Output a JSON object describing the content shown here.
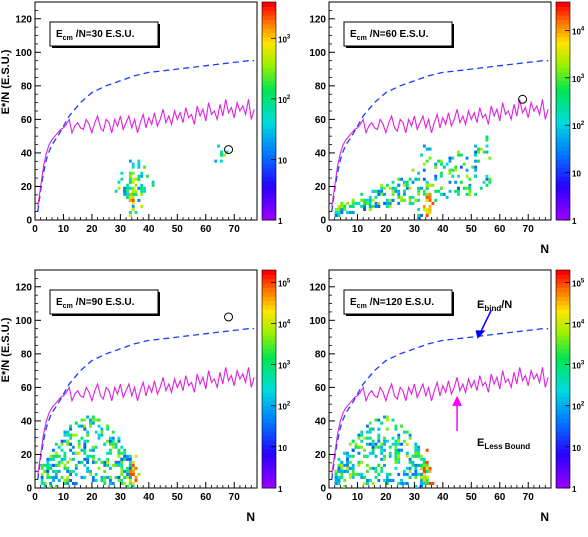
{
  "chart_data": [
    {
      "type": "heatmap",
      "label": "E_cm /N=30 E.S.U.",
      "label_main": "E",
      "label_sub": "cm",
      "label_rest": "/N=30 E.S.U.",
      "ylabel": "E*/N (E.S.U.)",
      "xlabel": "",
      "xlim": [
        0,
        78
      ],
      "ylim": [
        0,
        130
      ],
      "xticks": [
        "0",
        "10",
        "20",
        "30",
        "40",
        "50",
        "60",
        "70"
      ],
      "yticks": [
        "0",
        "20",
        "40",
        "60",
        "80",
        "100",
        "120"
      ],
      "colorbar": {
        "ticks": [
          "1",
          "10",
          "10^2",
          "10^3"
        ],
        "max_exp": 3.6
      },
      "circle": [
        68,
        42
      ],
      "series": [
        {
          "name": "",
          "style": "dashed-blue",
          "x": [
            1,
            2,
            3,
            4,
            5,
            6,
            8,
            10,
            12,
            14,
            16,
            18,
            20,
            25,
            30,
            35,
            40,
            45,
            50,
            55,
            60,
            65,
            70,
            75,
            77
          ],
          "y": [
            5,
            18,
            28,
            36,
            41,
            45,
            50,
            56,
            62,
            66,
            70,
            73,
            76,
            80,
            83,
            86,
            88,
            89,
            90,
            91,
            92,
            93,
            94,
            95,
            95
          ]
        },
        {
          "name": "",
          "style": "solid-magenta",
          "x": [
            1,
            2,
            3,
            4,
            5,
            6,
            7,
            8,
            9,
            10,
            11,
            12,
            13,
            14,
            15,
            16,
            17,
            18,
            19,
            20,
            21,
            22,
            23,
            24,
            25,
            26,
            27,
            28,
            29,
            30,
            31,
            32,
            33,
            34,
            35,
            36,
            37,
            38,
            39,
            40,
            41,
            42,
            43,
            44,
            45,
            46,
            47,
            48,
            49,
            50,
            51,
            52,
            53,
            54,
            55,
            56,
            57,
            58,
            59,
            60,
            61,
            62,
            63,
            64,
            65,
            66,
            67,
            68,
            69,
            70,
            71,
            72,
            73,
            74,
            75,
            76,
            77
          ],
          "y": [
            8,
            20,
            32,
            40,
            45,
            48,
            50,
            52,
            54,
            55,
            57,
            60,
            52,
            56,
            58,
            55,
            54,
            60,
            57,
            52,
            58,
            62,
            55,
            53,
            60,
            58,
            52,
            60,
            56,
            62,
            54,
            58,
            62,
            55,
            60,
            52,
            58,
            63,
            55,
            61,
            57,
            64,
            56,
            60,
            66,
            58,
            62,
            57,
            65,
            60,
            64,
            58,
            67,
            61,
            63,
            57,
            68,
            62,
            66,
            59,
            70,
            63,
            65,
            60,
            69,
            62,
            72,
            64,
            67,
            61,
            70,
            65,
            68,
            63,
            72,
            60,
            66
          ]
        }
      ],
      "clusters": [
        {
          "cx": 34,
          "cy": 20,
          "sx": 2.8,
          "sy": 7,
          "n": 70,
          "level": 0.55
        },
        {
          "cx": 34,
          "cy": 8,
          "sx": 0.7,
          "sy": 6,
          "n": 18,
          "level": 0.85
        },
        {
          "cx": 65,
          "cy": 38,
          "sx": 1.2,
          "sy": 2,
          "n": 10,
          "level": 0.6
        }
      ]
    },
    {
      "type": "heatmap",
      "label": "E_cm /N=60 E.S.U.",
      "label_main": "E",
      "label_sub": "cm",
      "label_rest": "/N=60 E.S.U.",
      "ylabel": "",
      "xlabel": "N",
      "xlim": [
        0,
        78
      ],
      "ylim": [
        0,
        130
      ],
      "xticks": [
        "0",
        "10",
        "20",
        "30",
        "40",
        "50",
        "60",
        "70"
      ],
      "yticks": [
        "0",
        "20",
        "40",
        "60",
        "80",
        "100",
        "120"
      ],
      "colorbar": {
        "ticks": [
          "1",
          "10",
          "10^2",
          "10^3",
          "10^4"
        ],
        "max_exp": 4.6
      },
      "circle": [
        68,
        72
      ],
      "series": [
        {
          "name": "",
          "style": "dashed-blue",
          "x": [
            1,
            2,
            3,
            4,
            5,
            6,
            8,
            10,
            12,
            14,
            16,
            18,
            20,
            25,
            30,
            35,
            40,
            45,
            50,
            55,
            60,
            65,
            70,
            75,
            77
          ],
          "y": [
            5,
            18,
            28,
            36,
            41,
            45,
            50,
            56,
            62,
            66,
            70,
            73,
            76,
            80,
            83,
            86,
            88,
            89,
            90,
            91,
            92,
            93,
            94,
            95,
            95
          ]
        },
        {
          "name": "",
          "style": "solid-magenta",
          "x": [
            1,
            2,
            3,
            4,
            5,
            6,
            7,
            8,
            9,
            10,
            11,
            12,
            13,
            14,
            15,
            16,
            17,
            18,
            19,
            20,
            21,
            22,
            23,
            24,
            25,
            26,
            27,
            28,
            29,
            30,
            31,
            32,
            33,
            34,
            35,
            36,
            37,
            38,
            39,
            40,
            41,
            42,
            43,
            44,
            45,
            46,
            47,
            48,
            49,
            50,
            51,
            52,
            53,
            54,
            55,
            56,
            57,
            58,
            59,
            60,
            61,
            62,
            63,
            64,
            65,
            66,
            67,
            68,
            69,
            70,
            71,
            72,
            73,
            74,
            75,
            76,
            77
          ],
          "y": [
            8,
            20,
            32,
            40,
            45,
            48,
            50,
            52,
            54,
            55,
            57,
            60,
            52,
            56,
            58,
            55,
            54,
            60,
            57,
            52,
            58,
            62,
            55,
            53,
            60,
            58,
            52,
            60,
            56,
            62,
            54,
            58,
            62,
            55,
            60,
            52,
            58,
            63,
            55,
            61,
            57,
            64,
            56,
            60,
            66,
            58,
            62,
            57,
            65,
            60,
            64,
            58,
            67,
            61,
            63,
            57,
            68,
            62,
            66,
            59,
            70,
            63,
            65,
            60,
            69,
            62,
            72,
            64,
            67,
            61,
            70,
            65,
            68,
            63,
            72,
            60,
            66
          ]
        }
      ],
      "clusters": [
        {
          "cx": 33,
          "cy": 25,
          "sx": 12,
          "sy": 9,
          "n": 260,
          "level": 0.5,
          "band": true
        },
        {
          "cx": 34,
          "cy": 10,
          "sx": 0.8,
          "sy": 8,
          "n": 30,
          "level": 0.8
        }
      ]
    },
    {
      "type": "heatmap",
      "label": "E_cm /N=90 E.S.U.",
      "label_main": "E",
      "label_sub": "cm",
      "label_rest": "/N=90 E.S.U.",
      "ylabel": "E*/N (E.S.U.)",
      "xlabel": "N",
      "xlim": [
        0,
        78
      ],
      "ylim": [
        0,
        130
      ],
      "xticks": [
        "0",
        "10",
        "20",
        "30",
        "40",
        "50",
        "60",
        "70"
      ],
      "yticks": [
        "0",
        "20",
        "40",
        "60",
        "80",
        "100",
        "120"
      ],
      "colorbar": {
        "ticks": [
          "1",
          "10",
          "10^2",
          "10^3",
          "10^4",
          "10^5"
        ],
        "max_exp": 5.3
      },
      "circle": [
        68,
        102
      ],
      "series": [
        {
          "name": "",
          "style": "dashed-blue",
          "x": [
            1,
            2,
            3,
            4,
            5,
            6,
            8,
            10,
            12,
            14,
            16,
            18,
            20,
            25,
            30,
            35,
            40,
            45,
            50,
            55,
            60,
            65,
            70,
            75,
            77
          ],
          "y": [
            5,
            18,
            28,
            36,
            41,
            45,
            50,
            56,
            62,
            66,
            70,
            73,
            76,
            80,
            83,
            86,
            88,
            89,
            90,
            91,
            92,
            93,
            94,
            95,
            95
          ]
        },
        {
          "name": "",
          "style": "solid-magenta",
          "x": [
            1,
            2,
            3,
            4,
            5,
            6,
            7,
            8,
            9,
            10,
            11,
            12,
            13,
            14,
            15,
            16,
            17,
            18,
            19,
            20,
            21,
            22,
            23,
            24,
            25,
            26,
            27,
            28,
            29,
            30,
            31,
            32,
            33,
            34,
            35,
            36,
            37,
            38,
            39,
            40,
            41,
            42,
            43,
            44,
            45,
            46,
            47,
            48,
            49,
            50,
            51,
            52,
            53,
            54,
            55,
            56,
            57,
            58,
            59,
            60,
            61,
            62,
            63,
            64,
            65,
            66,
            67,
            68,
            69,
            70,
            71,
            72,
            73,
            74,
            75,
            76,
            77
          ],
          "y": [
            8,
            20,
            32,
            40,
            45,
            48,
            50,
            52,
            54,
            55,
            57,
            60,
            52,
            56,
            58,
            55,
            54,
            60,
            57,
            52,
            58,
            62,
            55,
            53,
            60,
            58,
            52,
            60,
            56,
            62,
            54,
            58,
            62,
            55,
            60,
            52,
            58,
            63,
            55,
            61,
            57,
            64,
            56,
            60,
            66,
            58,
            62,
            57,
            65,
            60,
            64,
            58,
            67,
            61,
            63,
            57,
            68,
            62,
            66,
            59,
            70,
            63,
            65,
            60,
            69,
            62,
            72,
            64,
            67,
            61,
            70,
            65,
            68,
            63,
            72,
            60,
            66
          ]
        }
      ],
      "clusters": [
        {
          "cx": 18,
          "cy": 25,
          "sx": 9,
          "sy": 10,
          "n": 320,
          "level": 0.5,
          "dome": true
        },
        {
          "cx": 34,
          "cy": 8,
          "sx": 0.7,
          "sy": 6,
          "n": 20,
          "level": 0.85
        }
      ]
    },
    {
      "type": "heatmap",
      "label": "E_cm /N=120 E.S.U.",
      "label_main": "E",
      "label_sub": "cm",
      "label_rest": "/N=120 E.S.U.",
      "ylabel": "",
      "xlabel": "N",
      "xlim": [
        0,
        78
      ],
      "ylim": [
        0,
        130
      ],
      "xticks": [
        "0",
        "10",
        "20",
        "30",
        "40",
        "50",
        "60",
        "70"
      ],
      "yticks": [
        "0",
        "20",
        "40",
        "60",
        "80",
        "100",
        "120"
      ],
      "colorbar": {
        "ticks": [
          "1",
          "10",
          "10^2",
          "10^3",
          "10^4",
          "10^5"
        ],
        "max_exp": 5.3
      },
      "circle": null,
      "annotations": [
        {
          "text_main": "E",
          "text_sub": "bind",
          "text_rest": "/N",
          "color": "#0000ff"
        },
        {
          "text_main": "E",
          "text_sub": "Less Bound",
          "text_rest": "",
          "color": "#ff00ff"
        }
      ],
      "series": [
        {
          "name": "",
          "style": "dashed-blue",
          "x": [
            1,
            2,
            3,
            4,
            5,
            6,
            8,
            10,
            12,
            14,
            16,
            18,
            20,
            25,
            30,
            35,
            40,
            45,
            50,
            55,
            60,
            65,
            70,
            75,
            77
          ],
          "y": [
            5,
            18,
            28,
            36,
            41,
            45,
            50,
            56,
            62,
            66,
            70,
            73,
            76,
            80,
            83,
            86,
            88,
            89,
            90,
            91,
            92,
            93,
            94,
            95,
            95
          ]
        },
        {
          "name": "",
          "style": "solid-magenta",
          "x": [
            1,
            2,
            3,
            4,
            5,
            6,
            7,
            8,
            9,
            10,
            11,
            12,
            13,
            14,
            15,
            16,
            17,
            18,
            19,
            20,
            21,
            22,
            23,
            24,
            25,
            26,
            27,
            28,
            29,
            30,
            31,
            32,
            33,
            34,
            35,
            36,
            37,
            38,
            39,
            40,
            41,
            42,
            43,
            44,
            45,
            46,
            47,
            48,
            49,
            50,
            51,
            52,
            53,
            54,
            55,
            56,
            57,
            58,
            59,
            60,
            61,
            62,
            63,
            64,
            65,
            66,
            67,
            68,
            69,
            70,
            71,
            72,
            73,
            74,
            75,
            76,
            77
          ],
          "y": [
            8,
            20,
            32,
            40,
            45,
            48,
            50,
            52,
            54,
            55,
            57,
            60,
            52,
            56,
            58,
            55,
            54,
            60,
            57,
            52,
            58,
            62,
            55,
            53,
            60,
            58,
            52,
            60,
            56,
            62,
            54,
            58,
            62,
            55,
            60,
            52,
            58,
            63,
            55,
            61,
            57,
            64,
            56,
            60,
            66,
            58,
            62,
            57,
            65,
            60,
            64,
            58,
            67,
            61,
            63,
            57,
            68,
            62,
            66,
            59,
            70,
            63,
            65,
            60,
            69,
            62,
            72,
            64,
            67,
            61,
            70,
            65,
            68,
            63,
            72,
            60,
            66
          ]
        }
      ],
      "clusters": [
        {
          "cx": 18,
          "cy": 25,
          "sx": 9,
          "sy": 10,
          "n": 320,
          "level": 0.5,
          "dome": true
        },
        {
          "cx": 34,
          "cy": 8,
          "sx": 0.7,
          "sy": 6,
          "n": 20,
          "level": 0.85
        }
      ]
    }
  ]
}
